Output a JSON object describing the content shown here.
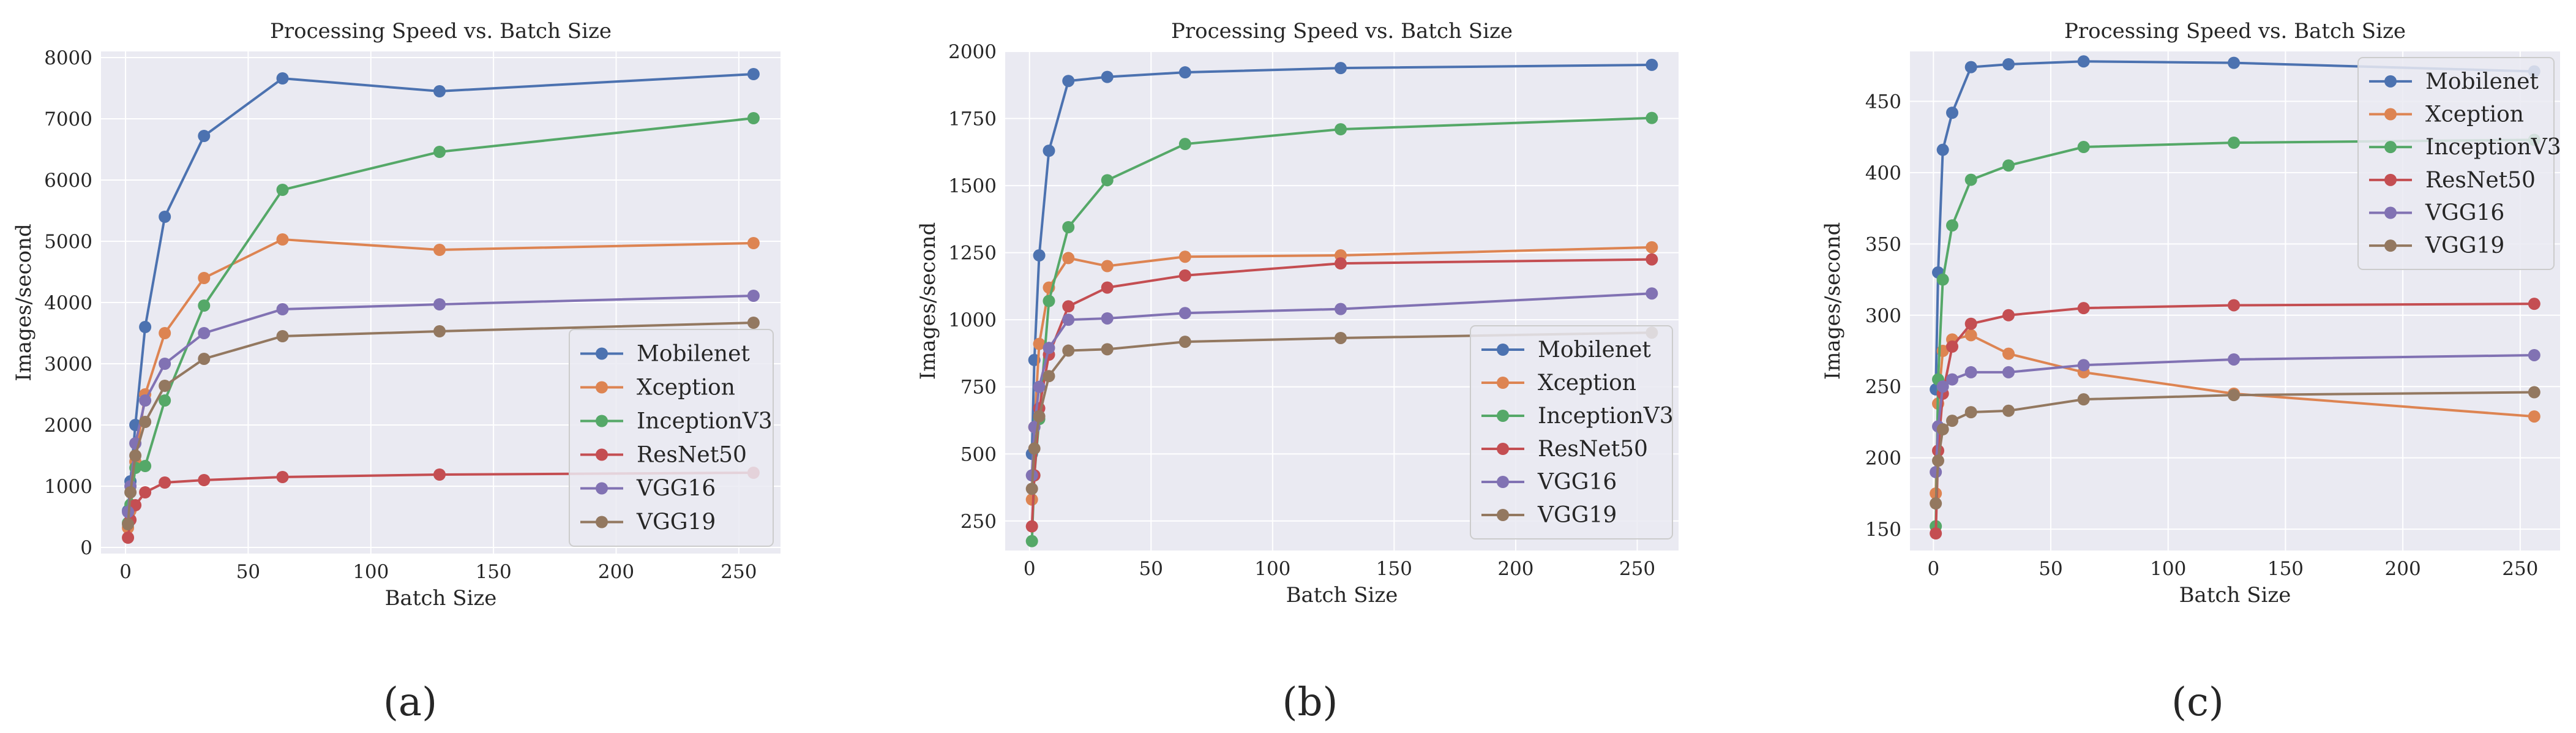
{
  "chart_data": [
    {
      "type": "line",
      "id": "a",
      "panel_label": "(a)",
      "title": "Processing Speed vs. Batch Size",
      "xlabel": "Batch Size",
      "ylabel": "Images/second",
      "xlim": [
        -10,
        267
      ],
      "ylim": [
        -100,
        8100
      ],
      "xticks": [
        0,
        50,
        100,
        150,
        200,
        250
      ],
      "yticks": [
        0,
        1000,
        2000,
        3000,
        4000,
        5000,
        6000,
        7000,
        8000
      ],
      "grid": true,
      "legend_position": "lower-right",
      "x": [
        1,
        2,
        4,
        8,
        16,
        32,
        64,
        128,
        256
      ],
      "series": [
        {
          "name": "Mobilenet",
          "color": "#4c72b0",
          "values": [
            600,
            1080,
            2000,
            3600,
            5400,
            6720,
            7660,
            7450,
            7730
          ]
        },
        {
          "name": "Xception",
          "color": "#dd8452",
          "values": [
            320,
            600,
            1400,
            2500,
            3500,
            4400,
            5030,
            4860,
            4970
          ]
        },
        {
          "name": "InceptionV3",
          "color": "#55a868",
          "values": [
            400,
            700,
            1300,
            1330,
            2400,
            3950,
            5840,
            6460,
            7010
          ]
        },
        {
          "name": "ResNet50",
          "color": "#c44e52",
          "values": [
            160,
            450,
            690,
            900,
            1060,
            1100,
            1150,
            1190,
            1220
          ]
        },
        {
          "name": "VGG16",
          "color": "#8172b3",
          "values": [
            580,
            1000,
            1700,
            2400,
            3000,
            3500,
            3890,
            3970,
            4110
          ]
        },
        {
          "name": "VGG19",
          "color": "#937860",
          "values": [
            380,
            900,
            1500,
            2050,
            2640,
            3080,
            3450,
            3530,
            3670
          ]
        }
      ]
    },
    {
      "type": "line",
      "id": "b",
      "panel_label": "(b)",
      "title": "Processing Speed vs. Batch Size",
      "xlabel": "Batch Size",
      "ylabel": "Images/second",
      "xlim": [
        -10,
        267
      ],
      "ylim": [
        140,
        2000
      ],
      "xticks": [
        0,
        50,
        100,
        150,
        200,
        250
      ],
      "yticks": [
        250,
        500,
        750,
        1000,
        1250,
        1500,
        1750,
        2000
      ],
      "grid": true,
      "legend_position": "lower-right",
      "x": [
        1,
        2,
        4,
        8,
        16,
        32,
        64,
        128,
        256
      ],
      "series": [
        {
          "name": "Mobilenet",
          "color": "#4c72b0",
          "values": [
            500,
            850,
            1240,
            1630,
            1890,
            1905,
            1922,
            1938,
            1950
          ]
        },
        {
          "name": "Xception",
          "color": "#dd8452",
          "values": [
            330,
            600,
            910,
            1120,
            1230,
            1200,
            1235,
            1240,
            1270
          ]
        },
        {
          "name": "InceptionV3",
          "color": "#55a868",
          "values": [
            175,
            420,
            630,
            1070,
            1345,
            1520,
            1655,
            1710,
            1752
          ]
        },
        {
          "name": "ResNet50",
          "color": "#c44e52",
          "values": [
            230,
            420,
            670,
            870,
            1050,
            1120,
            1165,
            1210,
            1225
          ]
        },
        {
          "name": "VGG16",
          "color": "#8172b3",
          "values": [
            420,
            600,
            750,
            895,
            1000,
            1005,
            1025,
            1040,
            1098
          ]
        },
        {
          "name": "VGG19",
          "color": "#937860",
          "values": [
            370,
            520,
            640,
            790,
            885,
            890,
            918,
            932,
            952
          ]
        }
      ]
    },
    {
      "type": "line",
      "id": "c",
      "panel_label": "(c)",
      "title": "Processing Speed vs. Batch Size",
      "xlabel": "Batch Size",
      "ylabel": "Images/second",
      "xlim": [
        -10,
        267
      ],
      "ylim": [
        135,
        485
      ],
      "xticks": [
        0,
        50,
        100,
        150,
        200,
        250
      ],
      "yticks": [
        150,
        200,
        250,
        300,
        350,
        400,
        450
      ],
      "grid": true,
      "legend_position": "top-right",
      "x": [
        1,
        2,
        4,
        8,
        16,
        32,
        64,
        128,
        256
      ],
      "series": [
        {
          "name": "Mobilenet",
          "color": "#4c72b0",
          "values": [
            248,
            330,
            416,
            442,
            474,
            476,
            478,
            477,
            471
          ]
        },
        {
          "name": "Xception",
          "color": "#dd8452",
          "values": [
            175,
            238,
            275,
            283,
            286,
            273,
            260,
            245,
            229
          ]
        },
        {
          "name": "InceptionV3",
          "color": "#55a868",
          "values": [
            152,
            255,
            325,
            363,
            395,
            405,
            418,
            421,
            423
          ]
        },
        {
          "name": "ResNet50",
          "color": "#c44e52",
          "values": [
            147,
            205,
            245,
            278,
            294,
            300,
            305,
            307,
            308
          ]
        },
        {
          "name": "VGG16",
          "color": "#8172b3",
          "values": [
            190,
            222,
            250,
            255,
            260,
            260,
            265,
            269,
            272
          ]
        },
        {
          "name": "VGG19",
          "color": "#937860",
          "values": [
            168,
            198,
            220,
            226,
            232,
            233,
            241,
            244,
            246
          ]
        }
      ]
    }
  ]
}
